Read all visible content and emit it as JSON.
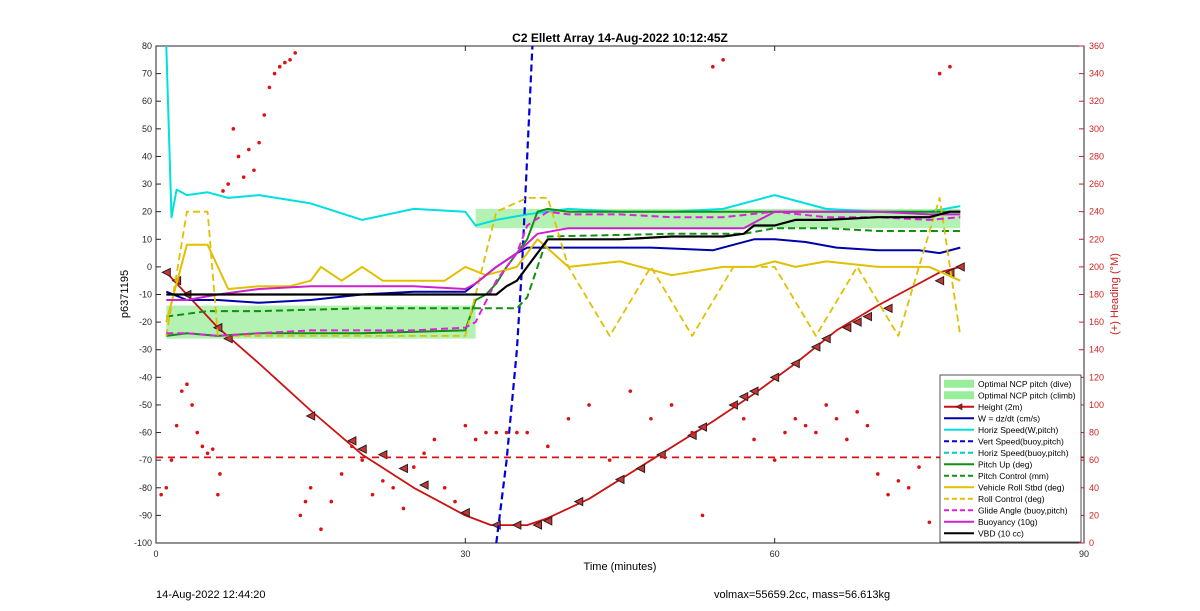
{
  "chart_data": {
    "type": "line",
    "title": "C2 Ellett Array 14-Aug-2022 10:12:45Z",
    "xlabel": "Time (minutes)",
    "ylabel_left": "p6371195",
    "ylabel_right": "(+) Heading (°M)",
    "xlim": [
      0,
      90
    ],
    "ylim_left": [
      -100,
      80
    ],
    "ylim_right": [
      0,
      360
    ],
    "x_ticks": [
      0,
      30,
      60,
      90
    ],
    "y_ticks_left": [
      -100,
      -90,
      -80,
      -70,
      -60,
      -50,
      -40,
      -30,
      -20,
      -10,
      0,
      10,
      20,
      30,
      40,
      50,
      60,
      70,
      80
    ],
    "y_ticks_right": [
      0,
      20,
      40,
      60,
      80,
      100,
      120,
      140,
      160,
      180,
      200,
      220,
      240,
      260,
      280,
      300,
      320,
      340,
      360
    ],
    "grid": false,
    "legend_position": "bottom-right",
    "colors": {
      "height": "#cc1111",
      "w": "#0000aa",
      "horiz_speed": "#00e0e0",
      "vert_speed_buoy": "#0000dd",
      "horiz_speed_buoy": "#00c8c8",
      "pitch_up": "#109010",
      "pitch_control": "#109010",
      "roll_stbd": "#e0c000",
      "roll_control": "#e0c000",
      "glide_angle": "#dd22dd",
      "buoyancy": "#cc22cc",
      "vbd": "#000000",
      "ncp_fill": "#99ee99",
      "heading": "#dd1111"
    },
    "legend": [
      {
        "key": "ncp_dive",
        "label": "Optimal NCP pitch (dive)"
      },
      {
        "key": "ncp_climb",
        "label": "Optimal NCP pitch (climb)"
      },
      {
        "key": "height",
        "label": "Height (2m)"
      },
      {
        "key": "w",
        "label": "W = dz/dt (cm/s)"
      },
      {
        "key": "horiz_speed",
        "label": "Horiz Speed(W,pitch)"
      },
      {
        "key": "vert_speed_buoy",
        "label": "Vert Speed(buoy,pitch)"
      },
      {
        "key": "horiz_speed_buoy",
        "label": "Horiz Speed(buoy,pitch)"
      },
      {
        "key": "pitch_up",
        "label": "Pitch Up (deg)"
      },
      {
        "key": "pitch_control",
        "label": "Pitch Control (mm)"
      },
      {
        "key": "roll_stbd",
        "label": "Vehicle Roll Stbd (deg)"
      },
      {
        "key": "roll_control",
        "label": "Roll Control (deg)"
      },
      {
        "key": "glide_angle",
        "label": "Glide Angle (buoy,pitch)"
      },
      {
        "key": "buoyancy",
        "label": "Buoyancy (10g)"
      },
      {
        "key": "vbd",
        "label": "VBD (10 cc)"
      }
    ],
    "ncp_dive_band": {
      "x": [
        1,
        31
      ],
      "y": [
        -26,
        -14
      ]
    },
    "ncp_climb_band": {
      "x": [
        31,
        78
      ],
      "y": [
        14,
        21
      ]
    },
    "series": [
      {
        "key": "height",
        "x": [
          1,
          3,
          6,
          10,
          15,
          20,
          25,
          30,
          32.5,
          36,
          38,
          42,
          48,
          54,
          58,
          62,
          66,
          70,
          74,
          76,
          78
        ],
        "y": [
          -2,
          -10,
          -22,
          -35,
          -52,
          -68,
          -80,
          -90,
          -93.5,
          -93.5,
          -91,
          -84,
          -70,
          -56,
          -46,
          -35,
          -23,
          -14,
          -6,
          -2,
          0
        ]
      },
      {
        "key": "height_markers",
        "x": [
          1,
          2,
          3,
          6,
          7,
          15,
          19,
          20,
          22,
          24,
          26,
          30,
          33,
          35,
          37,
          38,
          41,
          45,
          47,
          49,
          52,
          53,
          56,
          57,
          58,
          60,
          62,
          64,
          65,
          67,
          68,
          69,
          71,
          76,
          77,
          78
        ],
        "y": [
          -2,
          -5,
          -10,
          -22,
          -26,
          -54,
          -63,
          -66,
          -68,
          -73,
          -79,
          -89,
          -93.5,
          -93.5,
          -93.5,
          -92,
          -85,
          -77,
          -73,
          -68,
          -61,
          -58,
          -50,
          -47,
          -45,
          -40,
          -35,
          -29,
          -26,
          -22,
          -20,
          -18,
          -15,
          -5,
          -2,
          0
        ]
      },
      {
        "key": "w",
        "x": [
          1,
          3,
          6,
          10,
          15,
          20,
          25,
          30,
          31,
          33,
          35,
          36,
          38,
          42,
          48,
          54,
          56,
          58,
          60,
          63,
          66,
          70,
          74,
          76,
          78
        ],
        "y": [
          -9,
          -12,
          -12,
          -13,
          -12,
          -10,
          -9,
          -9,
          -6,
          0,
          5,
          7,
          7,
          7,
          7,
          6,
          8,
          10,
          10,
          9,
          7,
          6,
          6,
          5,
          7
        ]
      },
      {
        "key": "horiz_speed",
        "x": [
          1,
          1.5,
          2,
          3,
          5,
          7,
          10,
          15,
          20,
          25,
          30,
          31,
          33,
          36,
          40,
          45,
          50,
          55,
          60,
          62,
          65,
          70,
          75,
          78
        ],
        "y": [
          80,
          18,
          28,
          26,
          27,
          25,
          26,
          23,
          17,
          21,
          20,
          15,
          17,
          19,
          21,
          20,
          20,
          21,
          26,
          24,
          21,
          20,
          20,
          22
        ]
      },
      {
        "key": "vert_speed_buoy",
        "x": [
          33,
          34,
          35,
          35.5,
          36.5
        ],
        "y": [
          -100,
          -70,
          -30,
          0,
          80
        ]
      },
      {
        "key": "pitch_up",
        "x": [
          1,
          3,
          6,
          10,
          20,
          30,
          31,
          32,
          33,
          34,
          35,
          36,
          37,
          38,
          40,
          50,
          60,
          70,
          75,
          78
        ],
        "y": [
          -25,
          -24,
          -25,
          -24,
          -24,
          -23,
          -12,
          -10,
          -6,
          0,
          5,
          10,
          20,
          21,
          20,
          20,
          20,
          20,
          20,
          20
        ]
      },
      {
        "key": "pitch_control",
        "x": [
          1,
          5,
          10,
          20,
          30,
          32,
          35,
          36,
          38,
          50,
          57,
          60,
          65,
          70,
          78
        ],
        "y": [
          -18,
          -16,
          -16,
          -15,
          -15,
          -15,
          -15,
          -11,
          11,
          12,
          12,
          14,
          14,
          13,
          13
        ]
      },
      {
        "key": "roll_stbd",
        "x": [
          1,
          3,
          5,
          7,
          10,
          13,
          15,
          16,
          18,
          20,
          22,
          25,
          28,
          30,
          32,
          35,
          37,
          40,
          45,
          50,
          55,
          58,
          60,
          62,
          65,
          70,
          75,
          78
        ],
        "y": [
          -20,
          8,
          8,
          -8,
          -7,
          -7,
          -5,
          0,
          -5,
          0,
          -5,
          -5,
          -5,
          0,
          -3,
          0,
          10,
          0,
          2,
          -3,
          0,
          0,
          2,
          0,
          2,
          0,
          0,
          -5
        ]
      },
      {
        "key": "roll_control",
        "x": [
          1,
          3,
          5,
          6,
          8,
          10,
          14,
          15,
          18,
          22,
          26,
          30,
          33,
          36,
          38,
          40,
          44,
          48,
          52,
          56,
          60,
          64,
          68,
          72,
          76,
          78
        ],
        "y": [
          -25,
          20,
          20,
          -25,
          -25,
          -25,
          -25,
          -25,
          -25,
          -25,
          -25,
          -25,
          20,
          25,
          25,
          0,
          -25,
          0,
          -25,
          0,
          0,
          -25,
          0,
          -25,
          25,
          -25
        ]
      },
      {
        "key": "glide_angle",
        "x": [
          1,
          3,
          6,
          10,
          15,
          20,
          25,
          30,
          31,
          33,
          35,
          36,
          38,
          40,
          45,
          50,
          55,
          60,
          65,
          70,
          75,
          78
        ],
        "y": [
          -24,
          -24,
          -25,
          -24,
          -23,
          -23,
          -23,
          -22,
          -20,
          -5,
          5,
          15,
          20,
          19,
          19,
          18,
          18,
          20,
          18,
          18,
          17,
          18
        ]
      },
      {
        "key": "buoyancy",
        "x": [
          1,
          3,
          6,
          10,
          15,
          20,
          25,
          30,
          31,
          33,
          35,
          37,
          40,
          45,
          50,
          55,
          57,
          60,
          65,
          70,
          75,
          78
        ],
        "y": [
          -12,
          -12,
          -10,
          -8,
          -7,
          -7,
          -7,
          -8,
          -6,
          0,
          5,
          12,
          14,
          14,
          14,
          14,
          14,
          20,
          20,
          20,
          19,
          19
        ]
      },
      {
        "key": "vbd",
        "x": [
          1,
          3,
          5,
          10,
          20,
          30,
          33,
          34,
          35,
          36,
          37,
          38,
          40,
          45,
          50,
          55,
          57,
          58,
          60,
          62,
          65,
          70,
          75,
          77,
          78
        ],
        "y": [
          -10,
          -10,
          -10,
          -10,
          -10,
          -10,
          -10,
          -7,
          -5,
          0,
          5,
          10,
          10,
          10,
          11,
          11,
          12,
          15,
          15,
          17,
          17,
          18,
          18,
          20,
          20
        ]
      },
      {
        "key": "heading_mean",
        "axis": "right",
        "x": [
          0,
          90
        ],
        "y": [
          62,
          62
        ]
      },
      {
        "key": "heading_scatter",
        "axis": "right",
        "x": [
          0.5,
          1,
          1.5,
          2,
          2.5,
          3,
          3.5,
          4,
          4.5,
          5,
          5.5,
          6,
          6.2,
          6.5,
          7,
          7.5,
          8,
          8.5,
          9,
          9.5,
          10,
          10.5,
          11,
          11.5,
          12,
          12.5,
          13,
          13.5,
          14,
          14.5,
          15,
          16,
          17,
          18,
          19,
          20,
          21,
          22,
          23,
          24,
          25,
          26,
          27,
          28,
          29,
          30,
          31,
          32,
          33,
          34,
          35,
          36,
          38,
          40,
          42,
          44,
          46,
          48,
          50,
          52,
          53,
          54,
          55,
          56,
          57,
          58,
          60,
          61,
          62,
          63,
          64,
          65,
          66,
          67,
          68,
          69,
          70,
          71,
          72,
          73,
          74,
          75,
          76,
          77,
          78
        ],
        "y": [
          35,
          40,
          60,
          85,
          110,
          115,
          100,
          80,
          70,
          65,
          68,
          35,
          50,
          255,
          260,
          300,
          280,
          265,
          285,
          270,
          290,
          310,
          330,
          340,
          345,
          348,
          350,
          355,
          20,
          30,
          40,
          10,
          30,
          50,
          70,
          60,
          35,
          45,
          40,
          25,
          55,
          65,
          75,
          40,
          30,
          85,
          75,
          80,
          80,
          80,
          80,
          80,
          70,
          90,
          100,
          60,
          110,
          90,
          100,
          80,
          20,
          345,
          350,
          100,
          90,
          75,
          60,
          80,
          90,
          85,
          80,
          100,
          90,
          75,
          95,
          85,
          50,
          35,
          45,
          40,
          55,
          15,
          340,
          345,
          50
        ]
      }
    ]
  },
  "footer": {
    "left": "14-Aug-2022 12:44:20",
    "right": "volmax=55659.2cc, mass=56.613kg"
  }
}
